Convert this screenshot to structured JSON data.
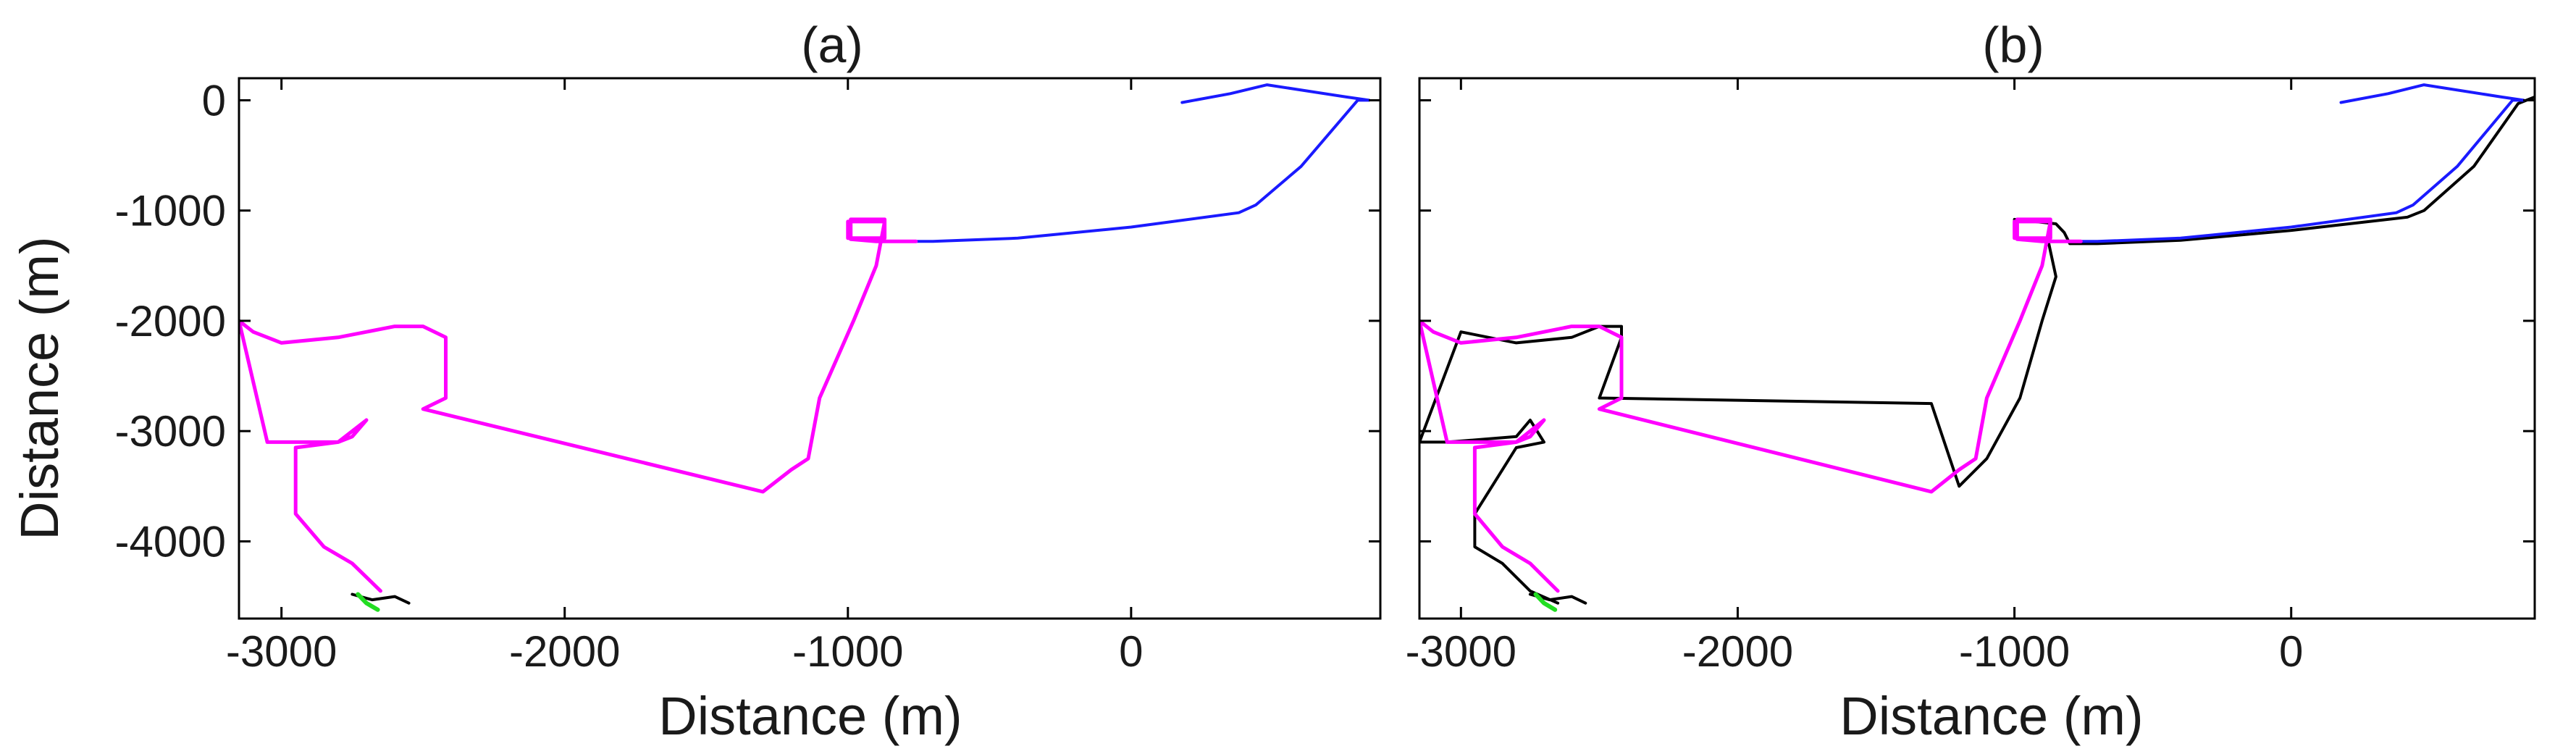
{
  "chart_data": [
    {
      "type": "line",
      "title": "(a)",
      "xlabel": "Distance (m)",
      "ylabel": "Distance (m)",
      "xlim": [
        -3150,
        880
      ],
      "ylim": [
        -4700,
        200
      ],
      "xticks": [
        -3000,
        -2000,
        -1000,
        0
      ],
      "yticks": [
        0,
        -1000,
        -2000,
        -3000,
        -4000
      ],
      "xtick_labels": [
        "-3000",
        "-2000",
        "-1000",
        "0"
      ],
      "ytick_labels": [
        "0",
        "-1000",
        "-2000",
        "-3000",
        "-4000"
      ],
      "grid": false,
      "series": [
        {
          "color": "#1a1aff",
          "x": [
            180,
            350,
            480,
            760,
            840,
            800,
            600,
            440,
            380,
            0,
            -400,
            -700,
            -760
          ],
          "y": [
            -20,
            60,
            140,
            30,
            0,
            0,
            -600,
            -950,
            -1020,
            -1150,
            -1250,
            -1280,
            -1280
          ]
        },
        {
          "color": "#ff00ff",
          "x": [
            -760,
            -820,
            -900,
            -990,
            -990,
            -870,
            -870,
            -1000,
            -1000,
            -870,
            -900,
            -980,
            -1100,
            -1140,
            -1200,
            -1300,
            -2500,
            -2420,
            -2420,
            -2500,
            -2600,
            -2800,
            -3000,
            -3100,
            -3150,
            -3050,
            -2800,
            -2750,
            -2700,
            -2800,
            -2950,
            -2950,
            -2850,
            -2750,
            -2650
          ],
          "y": [
            -1280,
            -1280,
            -1280,
            -1260,
            -1080,
            -1080,
            -1250,
            -1250,
            -1100,
            -1100,
            -1500,
            -2000,
            -2700,
            -3250,
            -3350,
            -3550,
            -2800,
            -2700,
            -2150,
            -2050,
            -2050,
            -2150,
            -2200,
            -2100,
            -2000,
            -3100,
            -3100,
            -3050,
            -2900,
            -3100,
            -3150,
            -3750,
            -4050,
            -4200,
            -4450
          ]
        },
        {
          "color": "#000000",
          "x": [
            -2750,
            -2680,
            -2600,
            -2550
          ],
          "y": [
            -4480,
            -4530,
            -4500,
            -4560
          ]
        },
        {
          "color": "#22dd22",
          "x": [
            -2730,
            -2700,
            -2660
          ],
          "y": [
            -4480,
            -4560,
            -4620
          ]
        }
      ]
    },
    {
      "type": "line",
      "title": "(b)",
      "xlabel": "Distance (m)",
      "ylabel": "",
      "xlim": [
        -3150,
        880
      ],
      "ylim": [
        -4700,
        200
      ],
      "xticks": [
        -3000,
        -2000,
        -1000,
        0
      ],
      "yticks": [
        0,
        -1000,
        -2000,
        -3000,
        -4000
      ],
      "xtick_labels": [
        "-3000",
        "-2000",
        "-1000",
        "0"
      ],
      "ytick_labels": [],
      "grid": false,
      "series": [
        {
          "color": "#000000",
          "x": [
            880,
            820,
            660,
            480,
            420,
            0,
            -400,
            -700,
            -800,
            -820,
            -850,
            -1000,
            -1000,
            -880,
            -850,
            -900,
            -980,
            -1100,
            -1140,
            -1200,
            -1300,
            -2500,
            -2420,
            -2420,
            -2500,
            -2600,
            -2800,
            -3000,
            -3150,
            -3050,
            -2800,
            -2750,
            -2700,
            -2800,
            -2950,
            -2950,
            -2850,
            -2750,
            -2650
          ],
          "y": [
            30,
            -30,
            -600,
            -1000,
            -1060,
            -1180,
            -1270,
            -1300,
            -1300,
            -1200,
            -1120,
            -1080,
            -1250,
            -1250,
            -1600,
            -2000,
            -2700,
            -3250,
            -3350,
            -3500,
            -2750,
            -2700,
            -2150,
            -2050,
            -2050,
            -2150,
            -2200,
            -2100,
            -3100,
            -3100,
            -3050,
            -2900,
            -3100,
            -3150,
            -3750,
            -4050,
            -4200,
            -4450,
            -4560
          ]
        },
        {
          "color": "#1a1aff",
          "x": [
            180,
            350,
            480,
            760,
            840,
            800,
            600,
            440,
            380,
            0,
            -400,
            -700,
            -760
          ],
          "y": [
            -20,
            60,
            140,
            30,
            0,
            0,
            -600,
            -950,
            -1020,
            -1150,
            -1250,
            -1280,
            -1280
          ]
        },
        {
          "color": "#ff00ff",
          "x": [
            -760,
            -820,
            -900,
            -990,
            -990,
            -870,
            -870,
            -1000,
            -1000,
            -870,
            -900,
            -980,
            -1100,
            -1140,
            -1200,
            -1300,
            -2500,
            -2420,
            -2420,
            -2500,
            -2600,
            -2800,
            -3000,
            -3100,
            -3150,
            -3050,
            -2800,
            -2750,
            -2700,
            -2800,
            -2950,
            -2950,
            -2850,
            -2750,
            -2650
          ],
          "y": [
            -1280,
            -1280,
            -1280,
            -1260,
            -1080,
            -1080,
            -1250,
            -1250,
            -1100,
            -1100,
            -1500,
            -2000,
            -2700,
            -3250,
            -3350,
            -3550,
            -2800,
            -2700,
            -2150,
            -2050,
            -2050,
            -2150,
            -2200,
            -2100,
            -2000,
            -3100,
            -3100,
            -3050,
            -2900,
            -3100,
            -3150,
            -3750,
            -4050,
            -4200,
            -4450
          ]
        },
        {
          "color": "#000000",
          "x": [
            -2750,
            -2680,
            -2600,
            -2550
          ],
          "y": [
            -4480,
            -4530,
            -4500,
            -4560
          ]
        },
        {
          "color": "#22dd22",
          "x": [
            -2730,
            -2700,
            -2660
          ],
          "y": [
            -4480,
            -4560,
            -4620
          ]
        }
      ]
    }
  ]
}
